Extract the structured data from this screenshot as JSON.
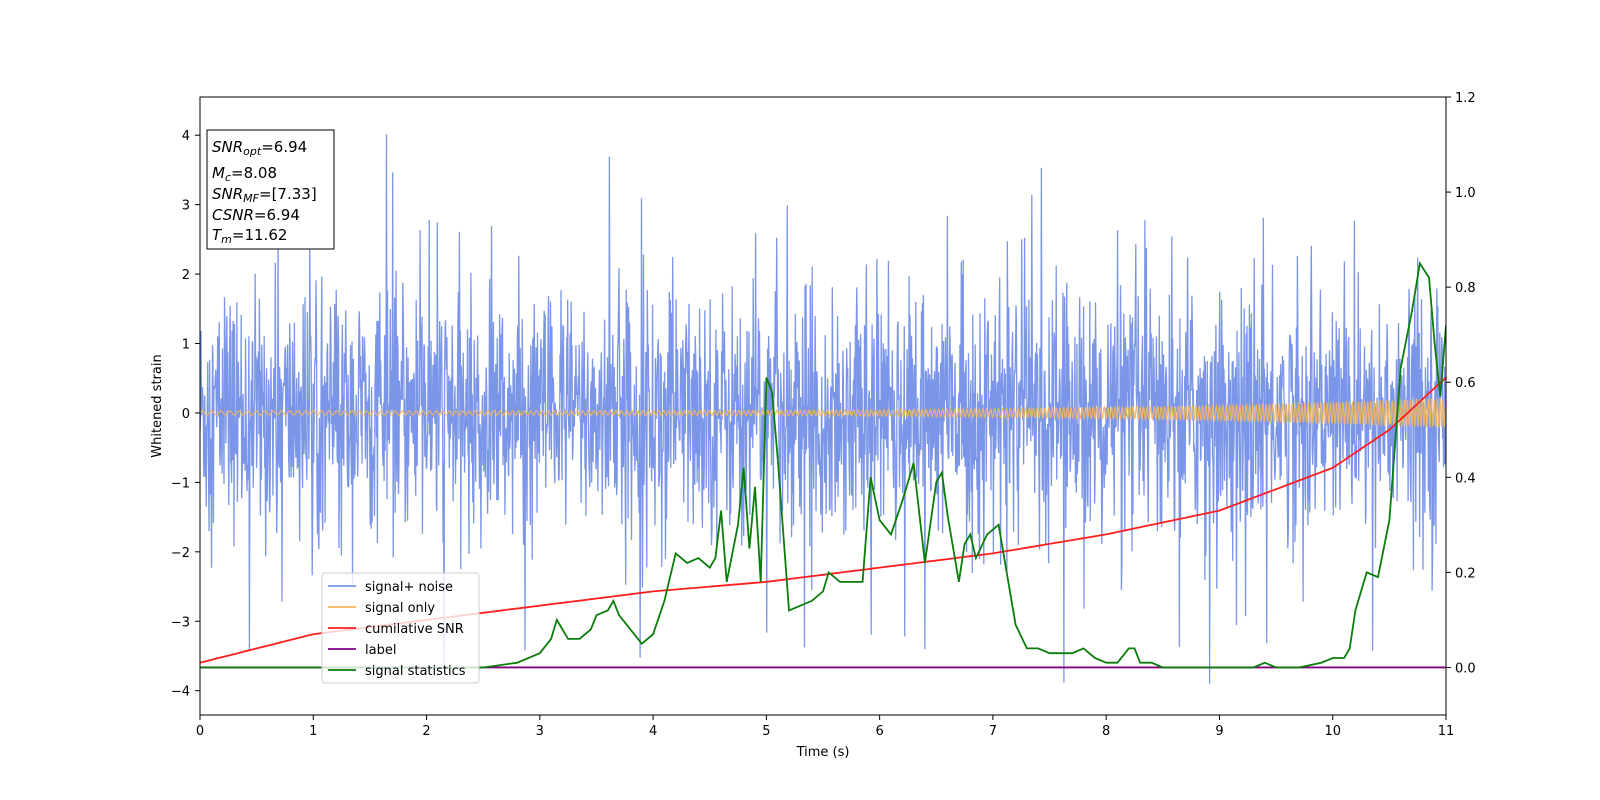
{
  "chart_data": {
    "type": "line",
    "xlabel": "Time (s)",
    "ylabel": "Whitened strain",
    "xlim": [
      0,
      11
    ],
    "ylim": [
      -4.35,
      4.55
    ],
    "y2lim": [
      -0.1,
      1.2
    ],
    "xticks": [
      0,
      1,
      2,
      3,
      4,
      5,
      6,
      7,
      8,
      9,
      10,
      11
    ],
    "yticks": [
      -4,
      -3,
      -2,
      -1,
      0,
      1,
      2,
      3,
      4
    ],
    "y2ticks": [
      "0.0",
      "0.2",
      "0.4",
      "0.6",
      "0.8",
      "1.0",
      "1.2"
    ],
    "y2tick_values": [
      0.0,
      0.2,
      0.4,
      0.6,
      0.8,
      1.0,
      1.2
    ],
    "legend_position": "lower-left",
    "colors": {
      "signal_noise": "#7b96e8",
      "signal_only": "#f5b65a",
      "cumulative_snr": "#ff1f1f",
      "label": "#800080",
      "signal_statistics": "#0a7d0a"
    },
    "series": [
      {
        "name": "signal+ noise",
        "axis": "left",
        "description_values": "noise band approx ±1.8 with spikes to ±4.2"
      },
      {
        "name": "signal only",
        "axis": "left",
        "amplitude_start": 0.03,
        "amplitude_end": 0.22
      },
      {
        "name": "cumilative SNR",
        "axis": "right",
        "x": [
          0,
          1,
          2,
          3,
          4,
          5,
          6,
          7,
          8,
          9,
          10,
          10.5,
          11
        ],
        "y": [
          0.01,
          0.07,
          0.1,
          0.13,
          0.16,
          0.18,
          0.21,
          0.24,
          0.28,
          0.33,
          0.42,
          0.5,
          0.61
        ]
      },
      {
        "name": "label",
        "axis": "right",
        "x": [
          0,
          11
        ],
        "y": [
          0,
          0
        ]
      },
      {
        "name": "signal statistics",
        "axis": "right",
        "x": [
          0,
          0.5,
          1,
          1.5,
          2,
          2.5,
          2.8,
          3.0,
          3.1,
          3.15,
          3.25,
          3.35,
          3.45,
          3.5,
          3.6,
          3.65,
          3.7,
          3.8,
          3.9,
          4.0,
          4.1,
          4.2,
          4.3,
          4.4,
          4.5,
          4.55,
          4.6,
          4.65,
          4.75,
          4.8,
          4.85,
          4.9,
          4.95,
          5.0,
          5.05,
          5.1,
          5.2,
          5.3,
          5.4,
          5.5,
          5.55,
          5.65,
          5.75,
          5.85,
          5.92,
          6.0,
          6.1,
          6.2,
          6.25,
          6.3,
          6.4,
          6.5,
          6.55,
          6.6,
          6.7,
          6.75,
          6.8,
          6.85,
          6.95,
          7.05,
          7.2,
          7.3,
          7.4,
          7.5,
          7.6,
          7.7,
          7.8,
          7.9,
          8.0,
          8.1,
          8.2,
          8.25,
          8.3,
          8.4,
          8.5,
          8.7,
          9.0,
          9.3,
          9.4,
          9.5,
          9.7,
          9.9,
          10.0,
          10.1,
          10.15,
          10.2,
          10.3,
          10.4,
          10.5,
          10.6,
          10.7,
          10.77,
          10.85,
          10.9,
          10.95,
          11.0
        ],
        "y": [
          0.0,
          0.0,
          0.0,
          0.0,
          0.0,
          0.0,
          0.01,
          0.03,
          0.06,
          0.1,
          0.06,
          0.06,
          0.08,
          0.11,
          0.12,
          0.14,
          0.11,
          0.08,
          0.05,
          0.07,
          0.14,
          0.24,
          0.22,
          0.23,
          0.21,
          0.23,
          0.33,
          0.18,
          0.3,
          0.42,
          0.25,
          0.38,
          0.18,
          0.61,
          0.58,
          0.44,
          0.12,
          0.13,
          0.14,
          0.16,
          0.2,
          0.18,
          0.18,
          0.18,
          0.4,
          0.31,
          0.28,
          0.35,
          0.39,
          0.43,
          0.22,
          0.39,
          0.41,
          0.32,
          0.18,
          0.26,
          0.28,
          0.23,
          0.28,
          0.3,
          0.09,
          0.04,
          0.04,
          0.03,
          0.03,
          0.03,
          0.04,
          0.02,
          0.01,
          0.01,
          0.04,
          0.04,
          0.01,
          0.01,
          0.0,
          0.0,
          0.0,
          0.0,
          0.01,
          0.0,
          0.0,
          0.01,
          0.02,
          0.02,
          0.04,
          0.12,
          0.2,
          0.19,
          0.31,
          0.63,
          0.75,
          0.85,
          0.82,
          0.68,
          0.57,
          0.72
        ]
      }
    ],
    "annotations": [
      {
        "base": "SNR",
        "sub": "opt",
        "value": "=6.94"
      },
      {
        "base": "M",
        "sub": "c",
        "value": "=8.08"
      },
      {
        "base": "SNR",
        "sub": "MF",
        "value": "=[7.33]"
      },
      {
        "base": "CSNR",
        "sub": "",
        "value": "=6.94"
      },
      {
        "base": "T",
        "sub": "m",
        "value": "=11.62"
      }
    ]
  },
  "legend": [
    {
      "label": "signal+ noise",
      "color": "#7b96e8"
    },
    {
      "label": "signal only",
      "color": "#f5b65a"
    },
    {
      "label": "cumilative SNR",
      "color": "#ff1f1f"
    },
    {
      "label": "label",
      "color": "#800080"
    },
    {
      "label": "signal statistics",
      "color": "#0a7d0a"
    }
  ]
}
